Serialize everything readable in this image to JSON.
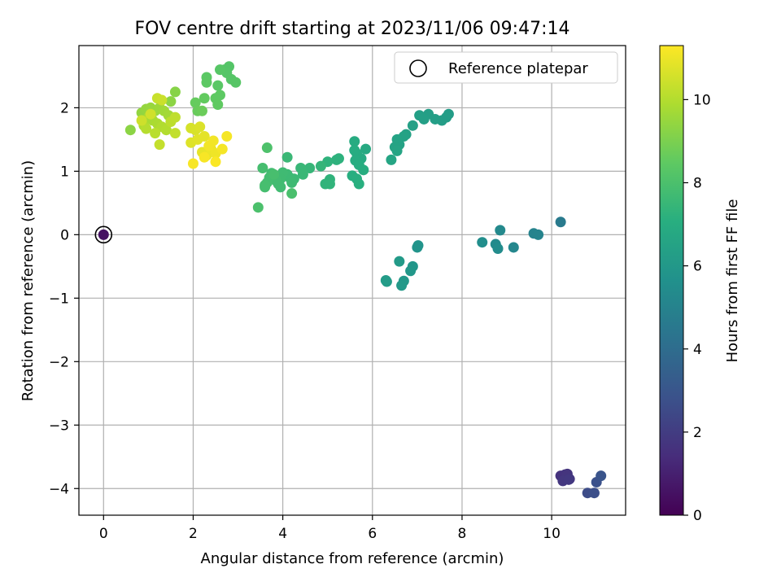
{
  "chart_data": {
    "type": "scatter",
    "title": "FOV centre drift starting at 2023/11/06 09:47:14",
    "xlabel": "Angular distance from reference (arcmin)",
    "ylabel": "Rotation from reference (arcmin)",
    "xlim": [
      -0.55,
      11.65
    ],
    "ylim": [
      -4.42,
      2.98
    ],
    "x_ticks": [
      0,
      2,
      4,
      6,
      8,
      10
    ],
    "y_ticks": [
      -4,
      -3,
      -2,
      -1,
      0,
      1,
      2
    ],
    "x_tick_labels": [
      "0",
      "2",
      "4",
      "6",
      "8",
      "10"
    ],
    "y_tick_labels": [
      "−4",
      "−3",
      "−2",
      "−1",
      "0",
      "1",
      "2"
    ],
    "grid": true,
    "legend": {
      "position": "top-right",
      "entries": [
        "Reference platepar"
      ]
    },
    "colorbar": {
      "label": "Hours from first FF file",
      "colormap": "viridis",
      "range": [
        0,
        11.3
      ],
      "ticks": [
        0,
        2,
        4,
        6,
        8,
        10
      ],
      "tick_labels": [
        "0",
        "2",
        "4",
        "6",
        "8",
        "10"
      ]
    },
    "reference_point": {
      "x": 0,
      "y": 0
    },
    "points": [
      {
        "x": 0.0,
        "y": 0.0,
        "h": 0.5
      },
      {
        "x": 10.2,
        "y": -3.8,
        "h": 1.6
      },
      {
        "x": 10.3,
        "y": -3.78,
        "h": 1.65
      },
      {
        "x": 10.35,
        "y": -3.77,
        "h": 1.7
      },
      {
        "x": 10.4,
        "y": -3.85,
        "h": 1.75
      },
      {
        "x": 10.25,
        "y": -3.88,
        "h": 1.8
      },
      {
        "x": 10.38,
        "y": -3.86,
        "h": 1.85
      },
      {
        "x": 10.8,
        "y": -4.07,
        "h": 2.6
      },
      {
        "x": 10.95,
        "y": -4.07,
        "h": 2.7
      },
      {
        "x": 11.0,
        "y": -3.9,
        "h": 2.8
      },
      {
        "x": 11.1,
        "y": -3.8,
        "h": 2.9
      },
      {
        "x": 10.2,
        "y": 0.2,
        "h": 4.6
      },
      {
        "x": 9.6,
        "y": 0.02,
        "h": 5.0
      },
      {
        "x": 9.7,
        "y": 0.0,
        "h": 5.05
      },
      {
        "x": 9.15,
        "y": -0.2,
        "h": 5.2
      },
      {
        "x": 8.85,
        "y": 0.07,
        "h": 5.3
      },
      {
        "x": 8.75,
        "y": -0.15,
        "h": 5.35
      },
      {
        "x": 8.8,
        "y": -0.22,
        "h": 5.4
      },
      {
        "x": 8.45,
        "y": -0.12,
        "h": 5.5
      },
      {
        "x": 7.0,
        "y": -0.2,
        "h": 5.8
      },
      {
        "x": 7.02,
        "y": -0.17,
        "h": 5.82
      },
      {
        "x": 6.9,
        "y": -0.5,
        "h": 5.9
      },
      {
        "x": 6.85,
        "y": -0.57,
        "h": 5.95
      },
      {
        "x": 6.7,
        "y": -0.73,
        "h": 6.0
      },
      {
        "x": 6.65,
        "y": -0.8,
        "h": 6.05
      },
      {
        "x": 6.6,
        "y": -0.42,
        "h": 6.1
      },
      {
        "x": 6.3,
        "y": -0.72,
        "h": 6.15
      },
      {
        "x": 6.32,
        "y": -0.74,
        "h": 6.17
      },
      {
        "x": 7.7,
        "y": 1.9,
        "h": 6.2
      },
      {
        "x": 7.65,
        "y": 1.85,
        "h": 6.22
      },
      {
        "x": 7.55,
        "y": 1.8,
        "h": 6.25
      },
      {
        "x": 7.4,
        "y": 1.82,
        "h": 6.28
      },
      {
        "x": 7.25,
        "y": 1.9,
        "h": 6.3
      },
      {
        "x": 7.15,
        "y": 1.82,
        "h": 6.32
      },
      {
        "x": 7.05,
        "y": 1.88,
        "h": 6.35
      },
      {
        "x": 6.9,
        "y": 1.72,
        "h": 6.4
      },
      {
        "x": 6.75,
        "y": 1.58,
        "h": 6.45
      },
      {
        "x": 6.7,
        "y": 1.55,
        "h": 6.48
      },
      {
        "x": 6.6,
        "y": 1.42,
        "h": 6.5
      },
      {
        "x": 6.55,
        "y": 1.5,
        "h": 6.52
      },
      {
        "x": 6.5,
        "y": 1.38,
        "h": 6.55
      },
      {
        "x": 6.55,
        "y": 1.32,
        "h": 6.58
      },
      {
        "x": 6.42,
        "y": 1.18,
        "h": 6.6
      },
      {
        "x": 5.85,
        "y": 1.35,
        "h": 6.8
      },
      {
        "x": 5.75,
        "y": 1.2,
        "h": 6.85
      },
      {
        "x": 5.65,
        "y": 1.28,
        "h": 6.9
      },
      {
        "x": 5.6,
        "y": 1.47,
        "h": 6.92
      },
      {
        "x": 5.6,
        "y": 1.33,
        "h": 6.95
      },
      {
        "x": 5.62,
        "y": 1.17,
        "h": 6.98
      },
      {
        "x": 5.7,
        "y": 1.1,
        "h": 7.0
      },
      {
        "x": 5.8,
        "y": 1.02,
        "h": 7.02
      },
      {
        "x": 5.55,
        "y": 0.93,
        "h": 7.05
      },
      {
        "x": 5.65,
        "y": 0.88,
        "h": 7.08
      },
      {
        "x": 5.7,
        "y": 0.8,
        "h": 7.1
      },
      {
        "x": 5.25,
        "y": 1.2,
        "h": 7.2
      },
      {
        "x": 5.2,
        "y": 1.18,
        "h": 7.22
      },
      {
        "x": 5.0,
        "y": 1.15,
        "h": 7.25
      },
      {
        "x": 5.05,
        "y": 0.87,
        "h": 7.28
      },
      {
        "x": 4.95,
        "y": 0.8,
        "h": 7.3
      },
      {
        "x": 5.05,
        "y": 0.8,
        "h": 7.32
      },
      {
        "x": 4.85,
        "y": 1.08,
        "h": 7.4
      },
      {
        "x": 4.6,
        "y": 1.05,
        "h": 7.45
      },
      {
        "x": 4.4,
        "y": 1.05,
        "h": 7.5
      },
      {
        "x": 4.45,
        "y": 0.95,
        "h": 7.52
      },
      {
        "x": 4.1,
        "y": 1.22,
        "h": 7.55
      },
      {
        "x": 4.25,
        "y": 0.88,
        "h": 7.6
      },
      {
        "x": 4.15,
        "y": 0.9,
        "h": 7.62
      },
      {
        "x": 4.1,
        "y": 0.95,
        "h": 7.64
      },
      {
        "x": 4.2,
        "y": 0.82,
        "h": 7.66
      },
      {
        "x": 4.0,
        "y": 0.98,
        "h": 7.68
      },
      {
        "x": 3.95,
        "y": 0.88,
        "h": 7.7
      },
      {
        "x": 3.9,
        "y": 0.8,
        "h": 7.72
      },
      {
        "x": 3.95,
        "y": 0.75,
        "h": 7.74
      },
      {
        "x": 3.85,
        "y": 0.85,
        "h": 7.76
      },
      {
        "x": 3.75,
        "y": 0.97,
        "h": 7.78
      },
      {
        "x": 3.7,
        "y": 0.9,
        "h": 7.8
      },
      {
        "x": 3.65,
        "y": 0.82,
        "h": 7.82
      },
      {
        "x": 3.6,
        "y": 0.75,
        "h": 7.84
      },
      {
        "x": 3.55,
        "y": 1.05,
        "h": 7.86
      },
      {
        "x": 3.6,
        "y": 0.78,
        "h": 7.88
      },
      {
        "x": 3.8,
        "y": 0.95,
        "h": 7.9
      },
      {
        "x": 4.2,
        "y": 0.65,
        "h": 7.95
      },
      {
        "x": 3.45,
        "y": 0.43,
        "h": 8.0
      },
      {
        "x": 3.65,
        "y": 1.37,
        "h": 8.05
      },
      {
        "x": 2.7,
        "y": 2.6,
        "h": 8.2
      },
      {
        "x": 2.8,
        "y": 2.65,
        "h": 8.22
      },
      {
        "x": 2.75,
        "y": 2.55,
        "h": 8.24
      },
      {
        "x": 2.85,
        "y": 2.45,
        "h": 8.26
      },
      {
        "x": 2.95,
        "y": 2.4,
        "h": 8.28
      },
      {
        "x": 2.6,
        "y": 2.6,
        "h": 8.3
      },
      {
        "x": 2.55,
        "y": 2.35,
        "h": 8.35
      },
      {
        "x": 2.3,
        "y": 2.48,
        "h": 8.4
      },
      {
        "x": 2.3,
        "y": 2.4,
        "h": 8.42
      },
      {
        "x": 2.6,
        "y": 2.2,
        "h": 8.45
      },
      {
        "x": 2.5,
        "y": 2.15,
        "h": 8.48
      },
      {
        "x": 2.55,
        "y": 2.05,
        "h": 8.5
      },
      {
        "x": 2.25,
        "y": 2.15,
        "h": 8.55
      },
      {
        "x": 2.05,
        "y": 2.08,
        "h": 8.6
      },
      {
        "x": 2.1,
        "y": 1.95,
        "h": 8.65
      },
      {
        "x": 2.2,
        "y": 1.95,
        "h": 8.7
      },
      {
        "x": 1.6,
        "y": 2.25,
        "h": 9.2
      },
      {
        "x": 1.5,
        "y": 2.1,
        "h": 9.3
      },
      {
        "x": 0.6,
        "y": 1.65,
        "h": 9.3
      },
      {
        "x": 0.85,
        "y": 1.92,
        "h": 9.4
      },
      {
        "x": 0.95,
        "y": 1.98,
        "h": 9.45
      },
      {
        "x": 1.05,
        "y": 2.0,
        "h": 9.5
      },
      {
        "x": 1.15,
        "y": 1.95,
        "h": 9.55
      },
      {
        "x": 1.25,
        "y": 2.0,
        "h": 9.6
      },
      {
        "x": 1.35,
        "y": 1.95,
        "h": 9.65
      },
      {
        "x": 1.45,
        "y": 1.88,
        "h": 9.7
      },
      {
        "x": 1.0,
        "y": 1.85,
        "h": 9.75
      },
      {
        "x": 1.1,
        "y": 1.8,
        "h": 9.8
      },
      {
        "x": 1.2,
        "y": 1.75,
        "h": 9.85
      },
      {
        "x": 0.9,
        "y": 1.72,
        "h": 9.9
      },
      {
        "x": 1.3,
        "y": 1.7,
        "h": 9.95
      },
      {
        "x": 1.4,
        "y": 1.65,
        "h": 10.0
      },
      {
        "x": 0.95,
        "y": 1.67,
        "h": 10.05
      },
      {
        "x": 1.15,
        "y": 1.6,
        "h": 10.1
      },
      {
        "x": 1.5,
        "y": 1.78,
        "h": 10.15
      },
      {
        "x": 1.6,
        "y": 1.85,
        "h": 10.2
      },
      {
        "x": 1.6,
        "y": 1.6,
        "h": 10.25
      },
      {
        "x": 1.25,
        "y": 1.42,
        "h": 10.3
      },
      {
        "x": 1.2,
        "y": 2.15,
        "h": 10.35
      },
      {
        "x": 1.3,
        "y": 2.12,
        "h": 10.4
      },
      {
        "x": 0.85,
        "y": 1.8,
        "h": 10.45
      },
      {
        "x": 1.05,
        "y": 1.9,
        "h": 10.5
      },
      {
        "x": 1.95,
        "y": 1.68,
        "h": 10.6
      },
      {
        "x": 2.05,
        "y": 1.65,
        "h": 10.65
      },
      {
        "x": 2.15,
        "y": 1.7,
        "h": 10.7
      },
      {
        "x": 1.95,
        "y": 1.45,
        "h": 10.75
      },
      {
        "x": 2.1,
        "y": 1.5,
        "h": 10.8
      },
      {
        "x": 2.25,
        "y": 1.55,
        "h": 10.85
      },
      {
        "x": 2.2,
        "y": 1.3,
        "h": 10.9
      },
      {
        "x": 2.3,
        "y": 1.25,
        "h": 10.95
      },
      {
        "x": 2.4,
        "y": 1.35,
        "h": 11.0
      },
      {
        "x": 2.5,
        "y": 1.28,
        "h": 11.05
      },
      {
        "x": 2.35,
        "y": 1.4,
        "h": 11.1
      },
      {
        "x": 2.45,
        "y": 1.48,
        "h": 11.1
      },
      {
        "x": 2.65,
        "y": 1.35,
        "h": 11.15
      },
      {
        "x": 2.75,
        "y": 1.55,
        "h": 11.15
      },
      {
        "x": 2.0,
        "y": 1.12,
        "h": 11.2
      },
      {
        "x": 2.25,
        "y": 1.22,
        "h": 11.2
      },
      {
        "x": 2.5,
        "y": 1.15,
        "h": 11.25
      }
    ]
  }
}
